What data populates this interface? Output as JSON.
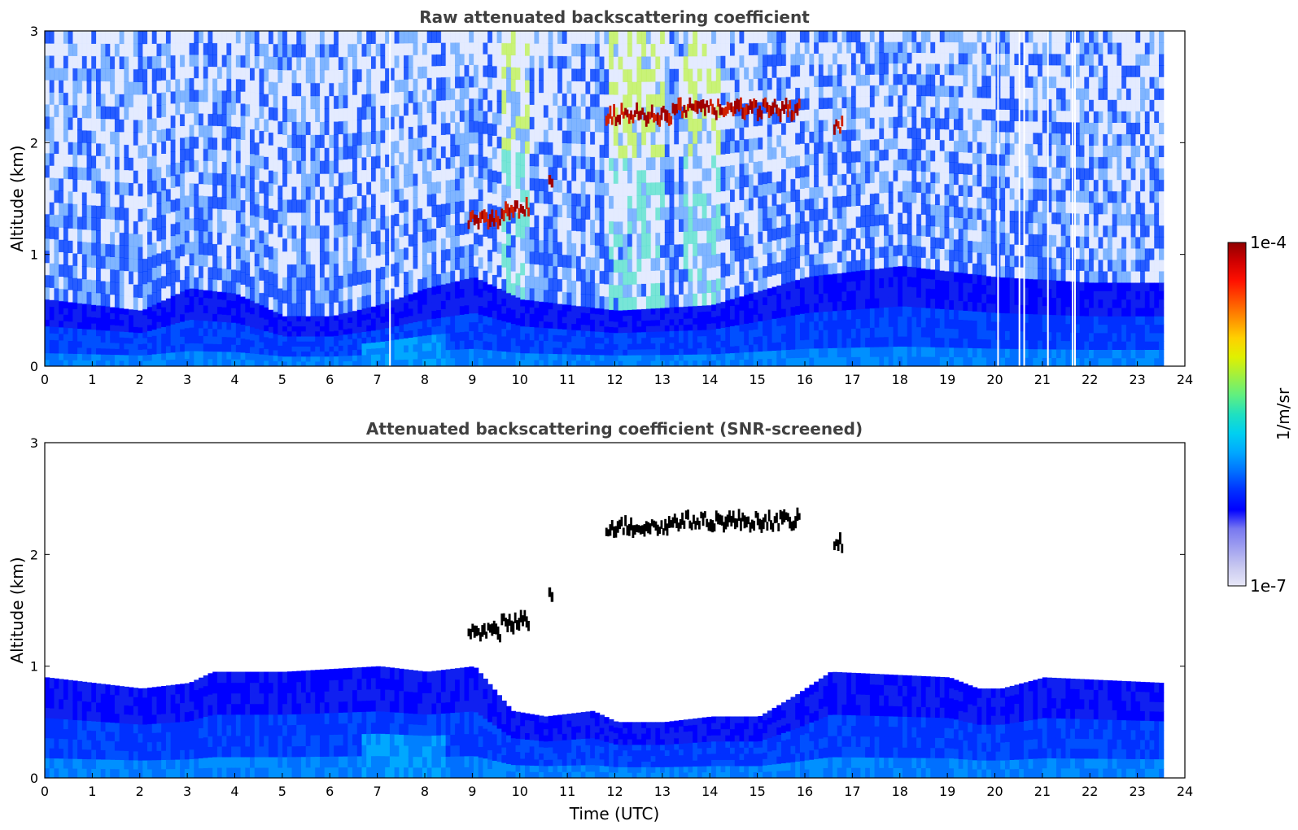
{
  "chart_data": [
    {
      "type": "heatmap",
      "title": "Raw attenuated backscattering coefficient",
      "xlabel": "",
      "ylabel": "Altitude (km)",
      "xlim": [
        0,
        24
      ],
      "ylim": [
        0,
        3
      ],
      "x_ticks": [
        "0",
        "1",
        "2",
        "3",
        "4",
        "5",
        "6",
        "7",
        "8",
        "9",
        "10",
        "11",
        "12",
        "13",
        "14",
        "15",
        "16",
        "17",
        "18",
        "19",
        "20",
        "21",
        "22",
        "23",
        "24"
      ],
      "y_ticks": [
        "0",
        "1",
        "2",
        "3"
      ],
      "data_end_time": 23.55,
      "data_gaps": [
        7.25,
        20.05,
        20.5,
        20.6,
        21.1,
        21.62,
        21.67
      ],
      "boundary_layer_top_km": [
        [
          0,
          0.6
        ],
        [
          1,
          0.55
        ],
        [
          2,
          0.5
        ],
        [
          3,
          0.7
        ],
        [
          4,
          0.65
        ],
        [
          5,
          0.45
        ],
        [
          6,
          0.45
        ],
        [
          7,
          0.55
        ],
        [
          8,
          0.7
        ],
        [
          9,
          0.8
        ],
        [
          10,
          0.6
        ],
        [
          12,
          0.5
        ],
        [
          14,
          0.55
        ],
        [
          16,
          0.8
        ],
        [
          18,
          0.9
        ],
        [
          20,
          0.8
        ],
        [
          22,
          0.75
        ],
        [
          23.55,
          0.75
        ]
      ],
      "cloud_layers": [
        {
          "t_start": 8.9,
          "t_end": 9.6,
          "altitude_km": 1.3
        },
        {
          "t_start": 9.6,
          "t_end": 10.2,
          "altitude_km": 1.4
        },
        {
          "t_start": 10.6,
          "t_end": 10.7,
          "altitude_km": 1.65
        },
        {
          "t_start": 11.8,
          "t_end": 13.2,
          "altitude_km": 2.25
        },
        {
          "t_start": 13.2,
          "t_end": 15.9,
          "altitude_km": 2.3
        },
        {
          "t_start": 16.6,
          "t_end": 16.8,
          "altitude_km": 2.15
        }
      ]
    },
    {
      "type": "heatmap",
      "title": "Attenuated backscattering coefficient (SNR-screened)",
      "xlabel": "Time (UTC)",
      "ylabel": "Altitude (km)",
      "xlim": [
        0,
        24
      ],
      "ylim": [
        0,
        3
      ],
      "x_ticks": [
        "0",
        "1",
        "2",
        "3",
        "4",
        "5",
        "6",
        "7",
        "8",
        "9",
        "10",
        "11",
        "12",
        "13",
        "14",
        "15",
        "16",
        "17",
        "18",
        "19",
        "20",
        "21",
        "22",
        "23",
        "24"
      ],
      "y_ticks": [
        "0",
        "1",
        "2",
        "3"
      ],
      "data_end_time": 23.55,
      "screened_top_km": [
        [
          0,
          0.9
        ],
        [
          1,
          0.85
        ],
        [
          2,
          0.8
        ],
        [
          3,
          0.85
        ],
        [
          3.5,
          0.95
        ],
        [
          5,
          0.95
        ],
        [
          7,
          1.0
        ],
        [
          8,
          0.95
        ],
        [
          9,
          1.0
        ],
        [
          9.8,
          0.6
        ],
        [
          10.5,
          0.55
        ],
        [
          11.5,
          0.6
        ],
        [
          12,
          0.5
        ],
        [
          13,
          0.5
        ],
        [
          14,
          0.55
        ],
        [
          15,
          0.55
        ],
        [
          15.8,
          0.75
        ],
        [
          16.5,
          0.95
        ],
        [
          19,
          0.9
        ],
        [
          19.6,
          0.8
        ],
        [
          20.1,
          0.8
        ],
        [
          21,
          0.9
        ],
        [
          23.55,
          0.85
        ]
      ],
      "cloud_layers": [
        {
          "t_start": 8.9,
          "t_end": 9.6,
          "altitude_km": 1.3
        },
        {
          "t_start": 9.6,
          "t_end": 10.2,
          "altitude_km": 1.4
        },
        {
          "t_start": 10.6,
          "t_end": 10.7,
          "altitude_km": 1.65
        },
        {
          "t_start": 11.8,
          "t_end": 13.2,
          "altitude_km": 2.25
        },
        {
          "t_start": 13.2,
          "t_end": 15.9,
          "altitude_km": 2.3
        },
        {
          "t_start": 16.6,
          "t_end": 16.8,
          "altitude_km": 2.1
        }
      ]
    }
  ],
  "colorbar": {
    "label": "1/m/sr",
    "min_label": "1e-7",
    "max_label": "1e-4",
    "colors": [
      "#e8e8f8",
      "#c8c8f0",
      "#a0a0f0",
      "#7878f0",
      "#0000ff",
      "#0030ff",
      "#0070ff",
      "#00a8ff",
      "#00d0f0",
      "#20e0c0",
      "#60f080",
      "#a0f040",
      "#e0f000",
      "#ffd000",
      "#ff9000",
      "#ff5000",
      "#ff1000",
      "#d00000",
      "#900000"
    ]
  }
}
